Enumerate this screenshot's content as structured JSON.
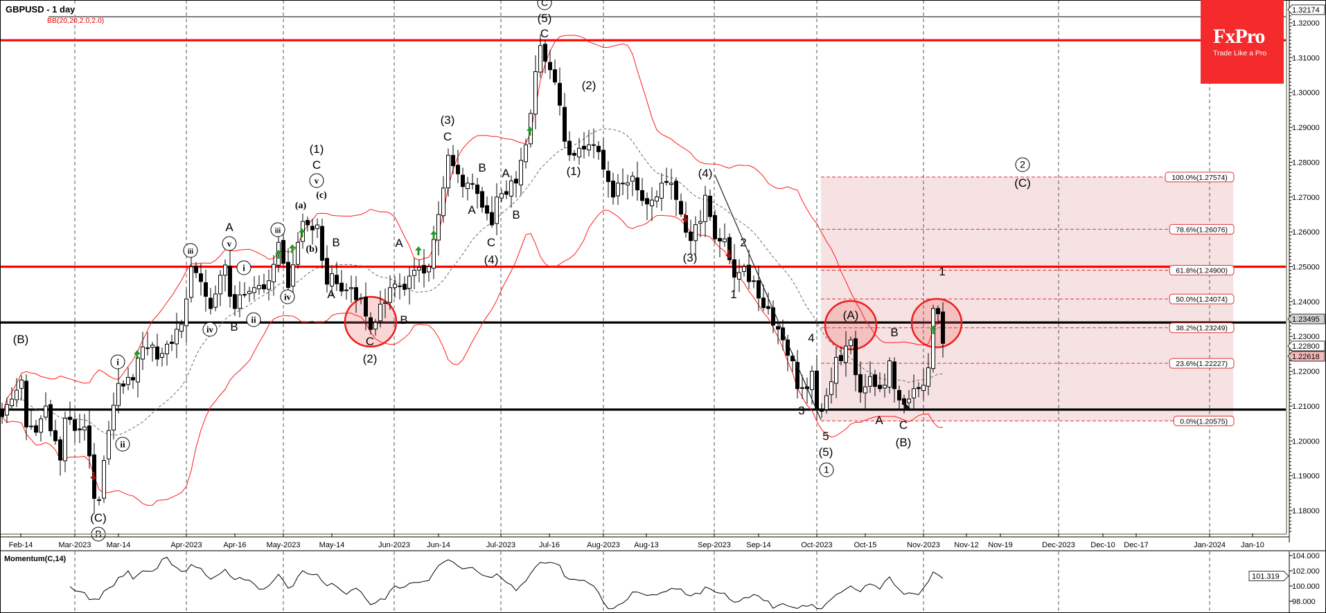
{
  "header": {
    "title": "GBPUSD - 1 day",
    "indicator": "BB(20,20,2.0,2.0)"
  },
  "logo": {
    "brand": "FxPro",
    "tagline": "Trade Like a Pro",
    "color": "#f42a2d"
  },
  "price_axis": {
    "labels": [
      "1.32000",
      "1.31000",
      "1.30000",
      "1.29000",
      "1.28000",
      "1.27000",
      "1.26000",
      "1.25000",
      "1.24000",
      "1.23000",
      "1.22000",
      "1.21000",
      "1.20000",
      "1.19000",
      "1.18000"
    ],
    "tags": [
      {
        "text": "1.32174",
        "value": 1.32174,
        "fill": "#ffffff"
      },
      {
        "text": "1.23495",
        "value": 1.23495,
        "fill": "#d0d0d0"
      },
      {
        "text": "1.22800",
        "value": 1.228,
        "fill": "#ffffff"
      },
      {
        "text": "1.22618",
        "value": 1.22618,
        "fill": "#f6b9b9"
      }
    ]
  },
  "date_axis": {
    "labels": [
      "Feb-14",
      "Mar-2023",
      "Mar-14",
      "Apr-2023",
      "Apr-16",
      "May-2023",
      "May-14",
      "Jun-2023",
      "Jun-14",
      "Jul-2023",
      "Jul-16",
      "Aug-2023",
      "Aug-13",
      "Sep-2023",
      "Sep-14",
      "Oct-2023",
      "Oct-15",
      "Nov-2023",
      "Nov-12",
      "Nov-19",
      "Dec-2023",
      "Dec-10",
      "Dec-17",
      "Jan-2024",
      "Jan-10"
    ]
  },
  "horizontal_levels": [
    {
      "value": 1.315,
      "color": "#ff0000"
    },
    {
      "value": 1.25,
      "color": "#ff0000"
    },
    {
      "value": 1.234,
      "color": "#000000"
    },
    {
      "value": 1.209,
      "color": "#000000"
    }
  ],
  "fibonacci": {
    "levels": [
      {
        "label": "100.0%(1.27574)",
        "value": 1.27574
      },
      {
        "label": "78.6%(1.26076)",
        "value": 1.26076
      },
      {
        "label": "61.8%(1.24900)",
        "value": 1.249
      },
      {
        "label": "50.0%(1.24074)",
        "value": 1.24074
      },
      {
        "label": "38.2%(1.23249)",
        "value": 1.23249
      },
      {
        "label": "23.6%(1.22227)",
        "value": 1.22227
      },
      {
        "label": "0.0%(1.20575)",
        "value": 1.20575
      }
    ],
    "zone_color": "#f6e2e2",
    "line_color": "#e03030"
  },
  "wave_labels": [
    "(B)",
    "(C)",
    "A",
    "B",
    "(1)",
    "C",
    "(a)",
    "(c)",
    "(b)",
    "B",
    "A",
    "C",
    "(2)",
    "A",
    "B",
    "(3)",
    "C",
    "B",
    "A",
    "C",
    "(4)",
    "A",
    "B",
    "C",
    "(5)",
    "(2)",
    "(1)",
    "(4)",
    "(3)",
    "2",
    "1",
    "4",
    "3",
    "5",
    "(5)",
    "(A)",
    "B",
    "A",
    "C",
    "(B)",
    "(C)",
    "1"
  ],
  "wave_labels_circled": [
    "i",
    "ii",
    "B",
    "iii",
    "v",
    "iv",
    "i",
    "ii",
    "iii",
    "iv",
    "v",
    "C",
    "1",
    "2"
  ],
  "momentum": {
    "label": "Momentum(C,14)",
    "axis_labels": [
      "104.000",
      "102.000",
      "100.000",
      "98.000"
    ],
    "tag": "101.319"
  },
  "chart_data": {
    "type": "candlestick",
    "symbol": "GBPUSD",
    "timeframe": "1 day",
    "ylim": [
      1.172,
      1.3237
    ],
    "grid": "monthly dashed verticals",
    "indicators": [
      "BB(20,20,2.0,2.0)",
      "Momentum(C,14)"
    ],
    "close_pivots": [
      [
        "2023-02-08",
        1.207
      ],
      [
        "2023-02-10",
        1.212
      ],
      [
        "2023-02-14",
        1.2175
      ],
      [
        "2023-02-15",
        1.204
      ],
      [
        "2023-02-17",
        1.2025
      ],
      [
        "2023-02-21",
        1.21
      ],
      [
        "2023-02-24",
        1.1945
      ],
      [
        "2023-02-27",
        1.2065
      ],
      [
        "2023-03-01",
        1.203
      ],
      [
        "2023-03-03",
        1.204
      ],
      [
        "2023-03-07",
        1.1835
      ],
      [
        "2023-03-08",
        1.183
      ],
      [
        "2023-03-10",
        1.203
      ],
      [
        "2023-03-14",
        1.2165
      ],
      [
        "2023-03-17",
        1.2175
      ],
      [
        "2023-03-21",
        1.227
      ],
      [
        "2023-03-23",
        1.2275
      ],
      [
        "2023-03-24",
        1.2235
      ],
      [
        "2023-03-31",
        1.2335
      ],
      [
        "2023-04-04",
        1.25
      ],
      [
        "2023-04-07",
        1.2415
      ],
      [
        "2023-04-10",
        1.238
      ],
      [
        "2023-04-13",
        1.2505
      ],
      [
        "2023-04-14",
        1.2415
      ],
      [
        "2023-04-17",
        1.238
      ],
      [
        "2023-04-19",
        1.242
      ],
      [
        "2023-04-21",
        1.244
      ],
      [
        "2023-04-26",
        1.246
      ],
      [
        "2023-04-28",
        1.257
      ],
      [
        "2023-05-02",
        1.244
      ],
      [
        "2023-05-04",
        1.257
      ],
      [
        "2023-05-05",
        1.263
      ],
      [
        "2023-05-08",
        1.262
      ],
      [
        "2023-05-10",
        1.262
      ],
      [
        "2023-05-12",
        1.245
      ],
      [
        "2023-05-15",
        1.248
      ],
      [
        "2023-05-17",
        1.243
      ],
      [
        "2023-05-19",
        1.244
      ],
      [
        "2023-05-23",
        1.241
      ],
      [
        "2023-05-25",
        1.232
      ],
      [
        "2023-05-26",
        1.234
      ],
      [
        "2023-05-31",
        1.244
      ],
      [
        "2023-06-01",
        1.245
      ],
      [
        "2023-06-02",
        1.2445
      ],
      [
        "2023-06-05",
        1.2435
      ],
      [
        "2023-06-07",
        1.249
      ],
      [
        "2023-06-12",
        1.25
      ],
      [
        "2023-06-14",
        1.265
      ],
      [
        "2023-06-16",
        1.282
      ],
      [
        "2023-06-19",
        1.279
      ],
      [
        "2023-06-21",
        1.273
      ],
      [
        "2023-06-22",
        1.274
      ],
      [
        "2023-06-26",
        1.271
      ],
      [
        "2023-06-29",
        1.262
      ],
      [
        "2023-06-30",
        1.27
      ],
      [
        "2023-07-03",
        1.271
      ],
      [
        "2023-07-06",
        1.274
      ],
      [
        "2023-07-10",
        1.285
      ],
      [
        "2023-07-11",
        1.294
      ],
      [
        "2023-07-12",
        1.306
      ],
      [
        "2023-07-13",
        1.3135
      ],
      [
        "2023-07-14",
        1.309
      ],
      [
        "2023-07-18",
        1.303
      ],
      [
        "2023-07-20",
        1.286
      ],
      [
        "2023-07-24",
        1.282
      ],
      [
        "2023-07-25",
        1.284
      ],
      [
        "2023-07-27",
        1.285
      ],
      [
        "2023-07-28",
        1.285
      ],
      [
        "2023-07-31",
        1.283
      ],
      [
        "2023-08-01",
        1.278
      ],
      [
        "2023-08-03",
        1.27
      ],
      [
        "2023-08-04",
        1.274
      ],
      [
        "2023-08-09",
        1.276
      ],
      [
        "2023-08-11",
        1.269
      ],
      [
        "2023-08-14",
        1.268
      ],
      [
        "2023-08-17",
        1.274
      ],
      [
        "2023-08-21",
        1.274
      ],
      [
        "2023-08-25",
        1.2575
      ],
      [
        "2023-08-29",
        1.263
      ],
      [
        "2023-08-30",
        1.2705
      ],
      [
        "2023-09-01",
        1.258
      ],
      [
        "2023-09-05",
        1.258
      ],
      [
        "2023-09-07",
        1.247
      ],
      [
        "2023-09-11",
        1.25
      ],
      [
        "2023-09-14",
        1.241
      ],
      [
        "2023-09-18",
        1.238
      ],
      [
        "2023-09-21",
        1.229
      ],
      [
        "2023-09-25",
        1.223
      ],
      [
        "2023-09-26",
        1.215
      ],
      [
        "2023-09-28",
        1.215
      ],
      [
        "2023-09-29",
        1.22
      ],
      [
        "2023-10-02",
        1.209
      ],
      [
        "2023-10-03",
        1.2085
      ],
      [
        "2023-10-04",
        1.213
      ],
      [
        "2023-10-06",
        1.224
      ],
      [
        "2023-10-09",
        1.223
      ],
      [
        "2023-10-11",
        1.229
      ],
      [
        "2023-10-12",
        1.219
      ],
      [
        "2023-10-13",
        1.214
      ],
      [
        "2023-10-17",
        1.2185
      ],
      [
        "2023-10-19",
        1.215
      ],
      [
        "2023-10-20",
        1.216
      ],
      [
        "2023-10-23",
        1.223
      ],
      [
        "2023-10-24",
        1.215
      ],
      [
        "2023-10-26",
        1.2105
      ],
      [
        "2023-10-27",
        1.212
      ],
      [
        "2023-10-30",
        1.215
      ],
      [
        "2023-10-31",
        1.215
      ],
      [
        "2023-11-01",
        1.216
      ],
      [
        "2023-11-02",
        1.221
      ],
      [
        "2023-11-03",
        1.238
      ],
      [
        "2023-11-06",
        1.2365
      ],
      [
        "2023-11-07",
        1.228
      ]
    ]
  }
}
